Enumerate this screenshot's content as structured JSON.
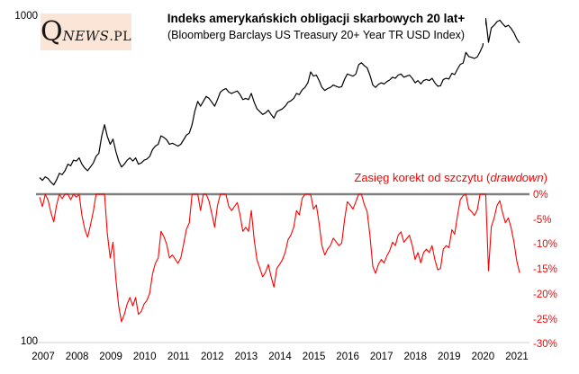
{
  "logo": {
    "q": "Q",
    "news": "NEWS",
    "pl": ".PL"
  },
  "header": {
    "title": "Indeks amerykańskich obligacji skarbowych 20 lat+",
    "subtitle": "(Bloomberg Barclays US Treasury 20+ Year TR USD Index)"
  },
  "drawdown_label": {
    "prefix": "Zasięg korekt od szczytu (",
    "italic_word": "drawdown",
    "suffix": ")"
  },
  "colors": {
    "index_line": "#000000",
    "drawdown_line": "#ff0000",
    "zero_line": "#808080",
    "x_axis_line": "#d9d9d9",
    "red_text": "#ff0000",
    "logo_bg": "#fbe5d6"
  },
  "chart_data": {
    "type": "line",
    "x_unit": "monthly",
    "x_range": [
      "2007-01",
      "2021-03"
    ],
    "x_tick_labels": [
      "2007",
      "2008",
      "2009",
      "2010",
      "2011",
      "2012",
      "2013",
      "2014",
      "2015",
      "2016",
      "2017",
      "2018",
      "2019",
      "2020",
      "2021"
    ],
    "grid": "off",
    "upper_panel": {
      "name": "Bloomberg Barclays US Treasury 20+ Year TR USD Index",
      "scale": "log",
      "ylim": [
        100,
        1000
      ],
      "ytick_labels": [
        "1000",
        "100"
      ],
      "line_color": "#000000",
      "values": [
        320,
        314,
        322,
        318,
        310,
        304,
        315,
        330,
        327,
        336,
        352,
        348,
        362,
        360,
        368,
        352,
        342,
        336,
        345,
        355,
        372,
        380,
        430,
        465,
        428,
        405,
        420,
        385,
        360,
        345,
        352,
        362,
        368,
        360,
        368,
        352,
        355,
        362,
        365,
        372,
        390,
        400,
        405,
        430,
        425,
        418,
        405,
        408,
        404,
        400,
        405,
        418,
        432,
        438,
        465,
        512,
        548,
        530,
        548,
        568,
        560,
        545,
        530,
        555,
        585,
        595,
        600,
        585,
        580,
        585,
        590,
        575,
        555,
        560,
        555,
        580,
        545,
        520,
        510,
        500,
        505,
        515,
        500,
        487,
        510,
        515,
        520,
        530,
        545,
        550,
        560,
        580,
        575,
        595,
        605,
        625,
        675,
        655,
        660,
        635,
        605,
        592,
        600,
        605,
        615,
        610,
        605,
        608,
        640,
        665,
        660,
        655,
        665,
        710,
        720,
        705,
        695,
        660,
        615,
        605,
        618,
        625,
        620,
        630,
        638,
        650,
        645,
        660,
        665,
        650,
        655,
        660,
        645,
        625,
        635,
        620,
        635,
        640,
        635,
        645,
        625,
        610,
        612,
        640,
        645,
        642,
        668,
        662,
        688,
        712,
        718,
        775,
        752,
        748,
        742,
        750,
        778,
        812,
        985,
        832,
        920,
        938,
        962,
        972,
        948,
        928,
        938,
        918,
        890,
        852,
        828
      ]
    },
    "lower_panel": {
      "name": "Zasięg korekt od szczytu (drawdown)",
      "unit": "%",
      "ylim": [
        0,
        -30
      ],
      "ytick_labels": [
        "0%",
        "-5%",
        "-10%",
        "-15%",
        "-20%",
        "-25%",
        "-30%"
      ],
      "line_color": "#ff0000",
      "values": [
        -0.6,
        -2.5,
        0,
        -1.2,
        -3.7,
        -5.6,
        -2.2,
        0,
        -0.9,
        0,
        0,
        -1.1,
        0,
        -0.6,
        0,
        -4.3,
        -7.1,
        -8.7,
        -6.3,
        -3.5,
        0,
        0,
        0,
        0,
        -8.0,
        -12.9,
        -9.7,
        -17.2,
        -22.6,
        -25.8,
        -24.3,
        -22.2,
        -20.9,
        -22.6,
        -20.9,
        -24.3,
        -23.7,
        -22.2,
        -21.5,
        -20.0,
        -16.1,
        -14.0,
        -12.9,
        -7.5,
        -8.6,
        -10.1,
        -12.9,
        -12.3,
        -13.1,
        -14.0,
        -12.9,
        -10.1,
        -7.1,
        -5.8,
        0,
        0,
        0,
        -3.3,
        0,
        0,
        -1.4,
        -4.0,
        -6.7,
        -2.3,
        0,
        0,
        0,
        -2.5,
        -3.3,
        -2.5,
        -1.7,
        -4.2,
        -7.5,
        -6.7,
        -7.5,
        -3.3,
        -9.2,
        -13.3,
        -15.0,
        -16.7,
        -15.8,
        -14.2,
        -16.7,
        -18.8,
        -15.0,
        -14.2,
        -13.3,
        -11.7,
        -9.2,
        -8.3,
        -6.7,
        -3.3,
        -4.2,
        -0.8,
        0,
        0,
        0,
        -3.0,
        -2.2,
        -5.9,
        -10.4,
        -12.3,
        -11.1,
        -10.4,
        -8.9,
        -9.6,
        -10.4,
        -9.9,
        -5.2,
        -1.5,
        -2.2,
        -3.0,
        -1.5,
        0,
        0,
        -2.1,
        -3.5,
        -8.3,
        -14.6,
        -16.0,
        -14.2,
        -13.2,
        -13.9,
        -12.5,
        -11.4,
        -9.7,
        -10.4,
        -8.3,
        -7.6,
        -9.7,
        -9.0,
        -8.3,
        -10.4,
        -13.2,
        -11.8,
        -13.9,
        -11.8,
        -11.1,
        -11.8,
        -10.4,
        -13.2,
        -15.3,
        -15.0,
        -11.1,
        -10.4,
        -10.8,
        -7.2,
        -8.1,
        -4.4,
        -1.1,
        -0.3,
        0,
        -3.0,
        -3.5,
        -4.3,
        -3.2,
        0,
        0,
        0,
        -15.5,
        -6.6,
        -4.8,
        -2.3,
        -1.3,
        -3.8,
        -5.8,
        -4.8,
        -6.8,
        -9.6,
        -13.5,
        -15.9
      ]
    }
  }
}
